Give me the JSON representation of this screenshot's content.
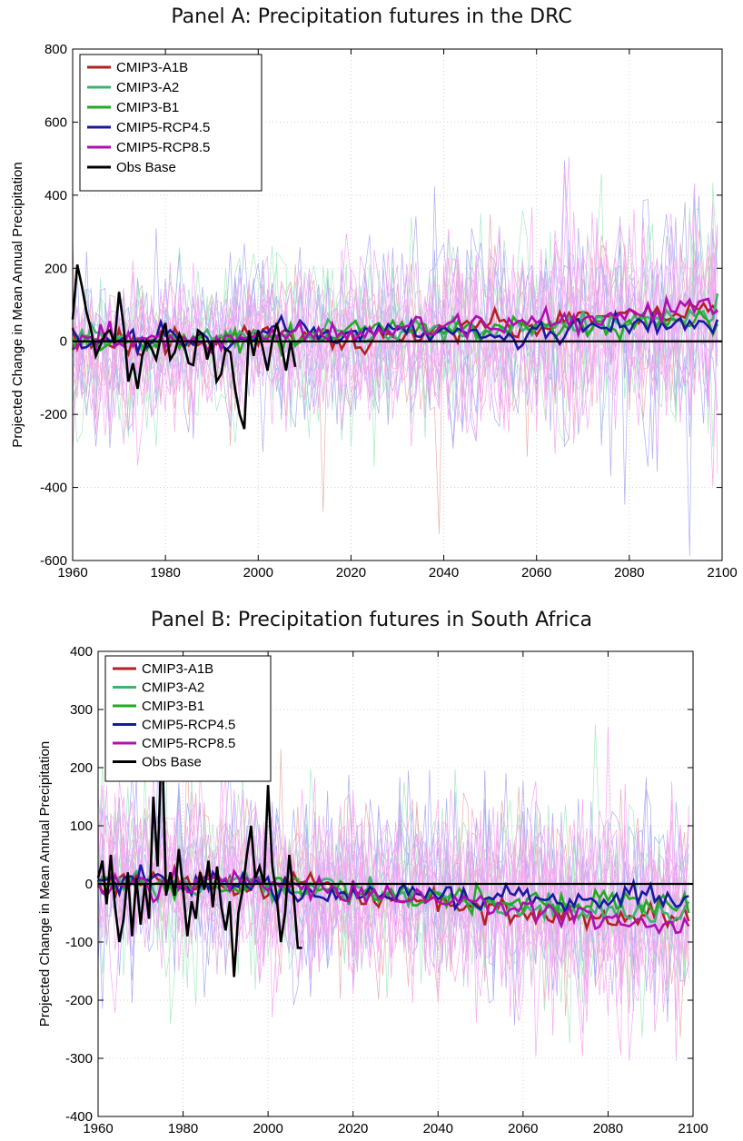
{
  "chart_data": [
    {
      "id": "A",
      "type": "line",
      "title": "Panel A: Precipitation futures in the DRC",
      "ylabel": "Projected Change in Mean Annual Precipitation",
      "xlabel": "",
      "xlim": [
        1960,
        2100
      ],
      "ylim": [
        -600,
        800
      ],
      "xticks": [
        1960,
        1980,
        2000,
        2020,
        2040,
        2060,
        2080,
        2100
      ],
      "yticks": [
        -600,
        -400,
        -200,
        0,
        200,
        400,
        600,
        800
      ],
      "grid": true,
      "legend_position": "top-left",
      "series": [
        {
          "name": "CMIP3-A1B",
          "color": "#b22222",
          "x": [
            1960,
            1970,
            1980,
            1990,
            2000,
            2010,
            2020,
            2030,
            2040,
            2050,
            2060,
            2070,
            2080,
            2090,
            2099
          ],
          "values": [
            5,
            0,
            -5,
            -5,
            25,
            15,
            -10,
            20,
            30,
            40,
            35,
            80,
            60,
            80,
            100
          ]
        },
        {
          "name": "CMIP3-A2",
          "color": "#3cb371",
          "x": [
            1960,
            1970,
            1980,
            1990,
            2000,
            2010,
            2020,
            2030,
            2040,
            2050,
            2060,
            2070,
            2080,
            2090,
            2099
          ],
          "values": [
            10,
            5,
            -10,
            10,
            15,
            20,
            10,
            30,
            35,
            25,
            40,
            50,
            55,
            65,
            75
          ]
        },
        {
          "name": "CMIP3-B1",
          "color": "#22aa22",
          "x": [
            1960,
            1970,
            1980,
            1990,
            2000,
            2010,
            2020,
            2030,
            2040,
            2050,
            2060,
            2070,
            2080,
            2090,
            2099
          ],
          "values": [
            0,
            -5,
            0,
            -5,
            10,
            10,
            20,
            40,
            30,
            30,
            35,
            40,
            45,
            50,
            60
          ]
        },
        {
          "name": "CMIP5-RCP4.5",
          "color": "#1a1aa0",
          "x": [
            1960,
            1970,
            1980,
            1990,
            2000,
            2010,
            2020,
            2030,
            2040,
            2050,
            2060,
            2070,
            2080,
            2090,
            2099
          ],
          "values": [
            -5,
            0,
            10,
            -10,
            15,
            35,
            20,
            35,
            20,
            10,
            20,
            50,
            40,
            50,
            40
          ]
        },
        {
          "name": "CMIP5-RCP8.5",
          "color": "#b010b0",
          "x": [
            1960,
            1970,
            1980,
            1990,
            2000,
            2010,
            2020,
            2030,
            2040,
            2050,
            2060,
            2070,
            2080,
            2090,
            2099
          ],
          "values": [
            5,
            0,
            -5,
            -5,
            20,
            25,
            10,
            35,
            40,
            45,
            55,
            60,
            70,
            90,
            110
          ]
        },
        {
          "name": "Obs Base",
          "color": "#000000",
          "x": [
            1960,
            1961,
            1962,
            1963,
            1964,
            1965,
            1966,
            1967,
            1968,
            1969,
            1970,
            1971,
            1972,
            1973,
            1974,
            1975,
            1976,
            1977,
            1978,
            1979,
            1980,
            1981,
            1982,
            1983,
            1984,
            1985,
            1986,
            1987,
            1988,
            1989,
            1990,
            1991,
            1992,
            1993,
            1994,
            1995,
            1996,
            1997,
            1998,
            1999,
            2000,
            2001,
            2002,
            2003,
            2004,
            2005,
            2006,
            2007,
            2008
          ],
          "values": [
            60,
            210,
            150,
            80,
            30,
            -40,
            -10,
            20,
            30,
            -5,
            135,
            40,
            -110,
            -60,
            -130,
            -40,
            0,
            -20,
            -50,
            10,
            50,
            -50,
            -30,
            20,
            -10,
            -60,
            -65,
            30,
            20,
            -50,
            0,
            -110,
            -90,
            -20,
            -30,
            -130,
            -200,
            -240,
            30,
            -40,
            30,
            -20,
            -80,
            0,
            50,
            -10,
            -80,
            0,
            -70
          ]
        }
      ],
      "ensemble_note": "",
      "zero_line": 0
    },
    {
      "id": "B",
      "type": "line",
      "title": "Panel B: Precipitation futures in South Africa",
      "ylabel": "Projected Change in Mean Annual Precipitation",
      "xlabel": "",
      "xlim": [
        1960,
        2100
      ],
      "ylim": [
        -400,
        400
      ],
      "xticks": [
        1960,
        1980,
        2000,
        2020,
        2040,
        2060,
        2080,
        2100
      ],
      "yticks": [
        -400,
        -300,
        -200,
        -100,
        0,
        100,
        200,
        300,
        400
      ],
      "grid": true,
      "legend_position": "top-left",
      "series": [
        {
          "name": "CMIP3-A1B",
          "color": "#b22222",
          "x": [
            1960,
            1970,
            1980,
            1990,
            2000,
            2010,
            2020,
            2030,
            2040,
            2050,
            2060,
            2070,
            2080,
            2090,
            2099
          ],
          "values": [
            5,
            0,
            5,
            0,
            -5,
            10,
            -20,
            -25,
            -30,
            -45,
            -50,
            -55,
            -60,
            -50,
            -55
          ]
        },
        {
          "name": "CMIP3-A2",
          "color": "#3cb371",
          "x": [
            1960,
            1970,
            1980,
            1990,
            2000,
            2010,
            2020,
            2030,
            2040,
            2050,
            2060,
            2070,
            2080,
            2090,
            2099
          ],
          "values": [
            0,
            5,
            -5,
            5,
            -10,
            -5,
            -15,
            -20,
            -25,
            -35,
            -40,
            -40,
            -45,
            -50,
            -45
          ]
        },
        {
          "name": "CMIP3-B1",
          "color": "#22aa22",
          "x": [
            1960,
            1970,
            1980,
            1990,
            2000,
            2010,
            2020,
            2030,
            2040,
            2050,
            2060,
            2070,
            2080,
            2090,
            2099
          ],
          "values": [
            5,
            -5,
            0,
            -10,
            -5,
            -10,
            -15,
            -20,
            -25,
            -30,
            -30,
            -35,
            -30,
            -35,
            -30
          ]
        },
        {
          "name": "CMIP5-RCP4.5",
          "color": "#1a1aa0",
          "x": [
            1960,
            1970,
            1980,
            1990,
            2000,
            2010,
            2020,
            2030,
            2040,
            2050,
            2060,
            2070,
            2080,
            2090,
            2099
          ],
          "values": [
            0,
            10,
            5,
            0,
            -10,
            -15,
            -20,
            -15,
            -20,
            -25,
            -20,
            -30,
            -25,
            -20,
            -25
          ]
        },
        {
          "name": "CMIP5-RCP8.5",
          "color": "#b010b0",
          "x": [
            1960,
            1970,
            1980,
            1990,
            2000,
            2010,
            2020,
            2030,
            2040,
            2050,
            2060,
            2070,
            2080,
            2090,
            2099
          ],
          "values": [
            0,
            5,
            0,
            5,
            0,
            -10,
            -15,
            -25,
            -30,
            -40,
            -45,
            -55,
            -60,
            -70,
            -65
          ]
        },
        {
          "name": "Obs Base",
          "color": "#000000",
          "x": [
            1960,
            1961,
            1962,
            1963,
            1964,
            1965,
            1966,
            1967,
            1968,
            1969,
            1970,
            1971,
            1972,
            1973,
            1974,
            1975,
            1976,
            1977,
            1978,
            1979,
            1980,
            1981,
            1982,
            1983,
            1984,
            1985,
            1986,
            1987,
            1988,
            1989,
            1990,
            1991,
            1992,
            1993,
            1994,
            1995,
            1996,
            1997,
            1998,
            1999,
            2000,
            2001,
            2002,
            2003,
            2004,
            2005,
            2006,
            2007,
            2008
          ],
          "values": [
            10,
            40,
            -35,
            50,
            -40,
            -100,
            -60,
            20,
            -90,
            10,
            -70,
            0,
            -60,
            150,
            30,
            260,
            -20,
            20,
            -20,
            60,
            -10,
            -90,
            -30,
            -60,
            20,
            -10,
            40,
            -40,
            30,
            -40,
            -80,
            -30,
            -160,
            -50,
            -10,
            50,
            100,
            10,
            30,
            0,
            170,
            30,
            -20,
            -100,
            -50,
            50,
            -20,
            -110,
            -110
          ]
        }
      ],
      "zero_line": 0
    }
  ]
}
